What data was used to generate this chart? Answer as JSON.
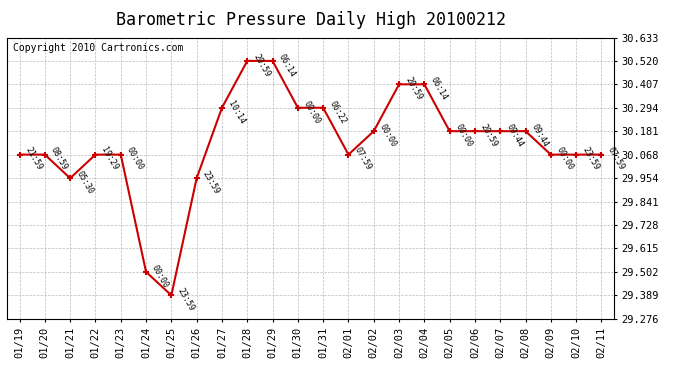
{
  "title": "Barometric Pressure Daily High 20100212",
  "copyright": "Copyright 2010 Cartronics.com",
  "x_labels": [
    "01/19",
    "01/20",
    "01/21",
    "01/22",
    "01/23",
    "01/24",
    "01/25",
    "01/26",
    "01/27",
    "01/28",
    "01/29",
    "01/30",
    "01/31",
    "02/01",
    "02/02",
    "02/03",
    "02/04",
    "02/05",
    "02/06",
    "02/07",
    "02/08",
    "02/09",
    "02/10",
    "02/11"
  ],
  "y_values": [
    30.068,
    30.068,
    29.954,
    30.068,
    30.068,
    29.502,
    29.389,
    29.954,
    30.294,
    30.52,
    30.52,
    30.294,
    30.294,
    30.068,
    30.181,
    30.407,
    30.407,
    30.181,
    30.181,
    30.181,
    30.181,
    30.068,
    30.068,
    30.068
  ],
  "time_labels": [
    "21:59",
    "08:59",
    "05:30",
    "19:29",
    "00:00",
    "00:00",
    "23:59",
    "23:59",
    "10:14",
    "20:59",
    "06:14",
    "00:00",
    "06:22",
    "07:59",
    "00:00",
    "20:59",
    "06:14",
    "00:00",
    "20:59",
    "09:44",
    "09:44",
    "00:00",
    "23:59",
    "07:59"
  ],
  "y_ticks": [
    29.276,
    29.389,
    29.502,
    29.615,
    29.728,
    29.841,
    29.954,
    30.068,
    30.181,
    30.294,
    30.407,
    30.52,
    30.633
  ],
  "ylim": [
    29.276,
    30.633
  ],
  "line_color": "#cc0000",
  "marker_color": "#cc0000",
  "grid_color": "#bbbbbb",
  "bg_color": "#ffffff",
  "title_fontsize": 12,
  "label_fontsize": 7.5,
  "annot_fontsize": 6,
  "copyright_fontsize": 7
}
